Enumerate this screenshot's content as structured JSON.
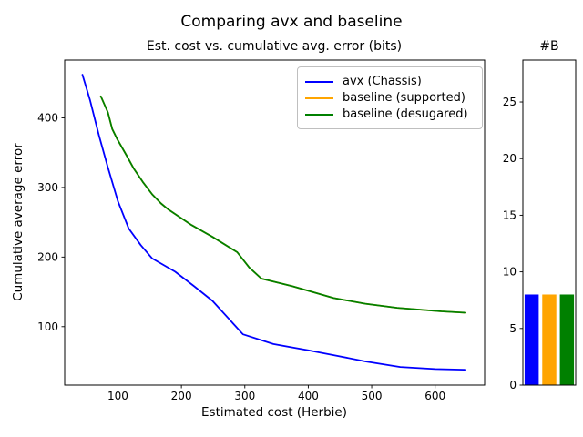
{
  "figure": {
    "suptitle": "Comparing avx and baseline",
    "background": "#ffffff"
  },
  "legend": {
    "position": "upper right",
    "entries": [
      {
        "label": "avx (Chassis)",
        "color": "#0000ff"
      },
      {
        "label": "baseline (supported)",
        "color": "#ffa500"
      },
      {
        "label": "baseline (desugared)",
        "color": "#008000"
      }
    ]
  },
  "chart_data": [
    {
      "type": "line",
      "title": "Est. cost vs. cumulative avg. error (bits)",
      "xlabel": "Estimated cost (Herbie)",
      "ylabel": "Cumulative average error",
      "xlim": [
        16,
        678
      ],
      "ylim": [
        16,
        483
      ],
      "xticks": [
        100,
        200,
        300,
        400,
        500,
        600
      ],
      "yticks": [
        100,
        200,
        300,
        400
      ],
      "grid": false,
      "legend_position": "upper right",
      "series": [
        {
          "name": "avx (Chassis)",
          "color": "#0000ff",
          "points": [
            [
              44,
              462
            ],
            [
              56,
              425
            ],
            [
              70,
              375
            ],
            [
              84,
              329
            ],
            [
              100,
              280
            ],
            [
              117,
              241
            ],
            [
              136,
              217
            ],
            [
              154,
              198
            ],
            [
              190,
              179
            ],
            [
              220,
              158
            ],
            [
              249,
              137
            ],
            [
              297,
              89
            ],
            [
              345,
              75
            ],
            [
              400,
              66
            ],
            [
              440,
              59
            ],
            [
              490,
              50
            ],
            [
              545,
              42
            ],
            [
              600,
              39
            ],
            [
              648,
              38
            ]
          ]
        },
        {
          "name": "baseline (supported)",
          "color": "#ffa500",
          "note": "curve coincides with baseline (desugared) and is hidden beneath it",
          "points": [
            [
              73,
              431
            ],
            [
              84,
              408
            ],
            [
              91,
              384
            ],
            [
              99,
              369
            ],
            [
              113,
              347
            ],
            [
              125,
              327
            ],
            [
              139,
              308
            ],
            [
              154,
              290
            ],
            [
              168,
              277
            ],
            [
              180,
              268
            ],
            [
              216,
              246
            ],
            [
              249,
              229
            ],
            [
              288,
              207
            ],
            [
              307,
              185
            ],
            [
              326,
              169
            ],
            [
              375,
              158
            ],
            [
              402,
              151
            ],
            [
              440,
              141
            ],
            [
              490,
              133
            ],
            [
              540,
              127
            ],
            [
              610,
              122
            ],
            [
              648,
              120
            ]
          ]
        },
        {
          "name": "baseline (desugared)",
          "color": "#008000",
          "points": [
            [
              73,
              431
            ],
            [
              84,
              408
            ],
            [
              91,
              384
            ],
            [
              99,
              369
            ],
            [
              113,
              347
            ],
            [
              125,
              327
            ],
            [
              139,
              308
            ],
            [
              154,
              290
            ],
            [
              168,
              277
            ],
            [
              180,
              268
            ],
            [
              216,
              246
            ],
            [
              249,
              229
            ],
            [
              288,
              207
            ],
            [
              307,
              185
            ],
            [
              326,
              169
            ],
            [
              375,
              158
            ],
            [
              402,
              151
            ],
            [
              440,
              141
            ],
            [
              490,
              133
            ],
            [
              540,
              127
            ],
            [
              610,
              122
            ],
            [
              648,
              120
            ]
          ]
        }
      ]
    },
    {
      "type": "bar",
      "title": "#B",
      "categories": [
        "avx (Chassis)",
        "baseline (supported)",
        "baseline (desugared)"
      ],
      "values": [
        8,
        8,
        8
      ],
      "colors": [
        "#0000ff",
        "#ffa500",
        "#008000"
      ],
      "yticks": [
        0,
        5,
        10,
        15,
        20,
        25
      ],
      "ylim": [
        0,
        28.7
      ],
      "grid": false
    }
  ]
}
